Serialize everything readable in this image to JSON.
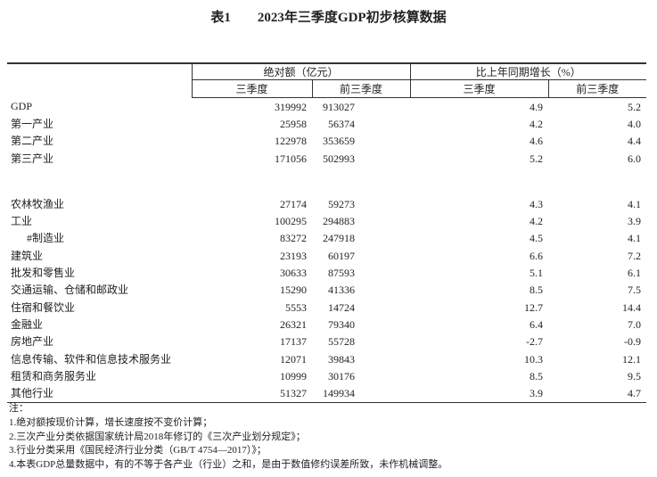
{
  "title": "表1　　2023年三季度GDP初步核算数据",
  "header": {
    "group1": "绝对额（亿元）",
    "group2": "比上年同期增长（%）",
    "columns": [
      "三季度",
      "前三季度",
      "三季度",
      "前三季度"
    ]
  },
  "sections": [
    {
      "rows": [
        [
          "GDP",
          "319992",
          "913027",
          "4.9",
          "5.2"
        ],
        [
          "第一产业",
          "25958",
          "56374",
          "4.2",
          "4.0"
        ],
        [
          "第二产业",
          "122978",
          "353659",
          "4.6",
          "4.4"
        ],
        [
          "第三产业",
          "171056",
          "502993",
          "5.2",
          "6.0"
        ]
      ]
    },
    {
      "rows": [
        [
          "农林牧渔业",
          "27174",
          "59273",
          "4.3",
          "4.1"
        ],
        [
          "工业",
          "100295",
          "294883",
          "4.2",
          "3.9"
        ],
        [
          "#制造业",
          "83272",
          "247918",
          "4.5",
          "4.1"
        ],
        [
          "建筑业",
          "23193",
          "60197",
          "6.6",
          "7.2"
        ],
        [
          "批发和零售业",
          "30633",
          "87593",
          "5.1",
          "6.1"
        ],
        [
          "交通运输、仓储和邮政业",
          "15290",
          "41336",
          "8.5",
          "7.5"
        ],
        [
          "住宿和餐饮业",
          "5553",
          "14724",
          "12.7",
          "14.4"
        ],
        [
          "金融业",
          "26321",
          "79340",
          "6.4",
          "7.0"
        ],
        [
          "房地产业",
          "17137",
          "55728",
          "-2.7",
          "-0.9"
        ],
        [
          "信息传输、软件和信息技术服务业",
          "12071",
          "39843",
          "10.3",
          "12.1"
        ],
        [
          "租赁和商务服务业",
          "10999",
          "30176",
          "8.5",
          "9.5"
        ],
        [
          "其他行业",
          "51327",
          "149934",
          "3.9",
          "4.7"
        ]
      ]
    }
  ],
  "notes": [
    "注：",
    "1.绝对额按现价计算，增长速度按不变价计算；",
    "2.三次产业分类依据国家统计局2018年修订的《三次产业划分规定》；",
    "3.行业分类采用《国民经济行业分类（GB/T 4754—2017）》；",
    "4.本表GDP总量数据中，有的不等于各产业（行业）之和，是由于数值修约误差所致，未作机械调整。"
  ]
}
